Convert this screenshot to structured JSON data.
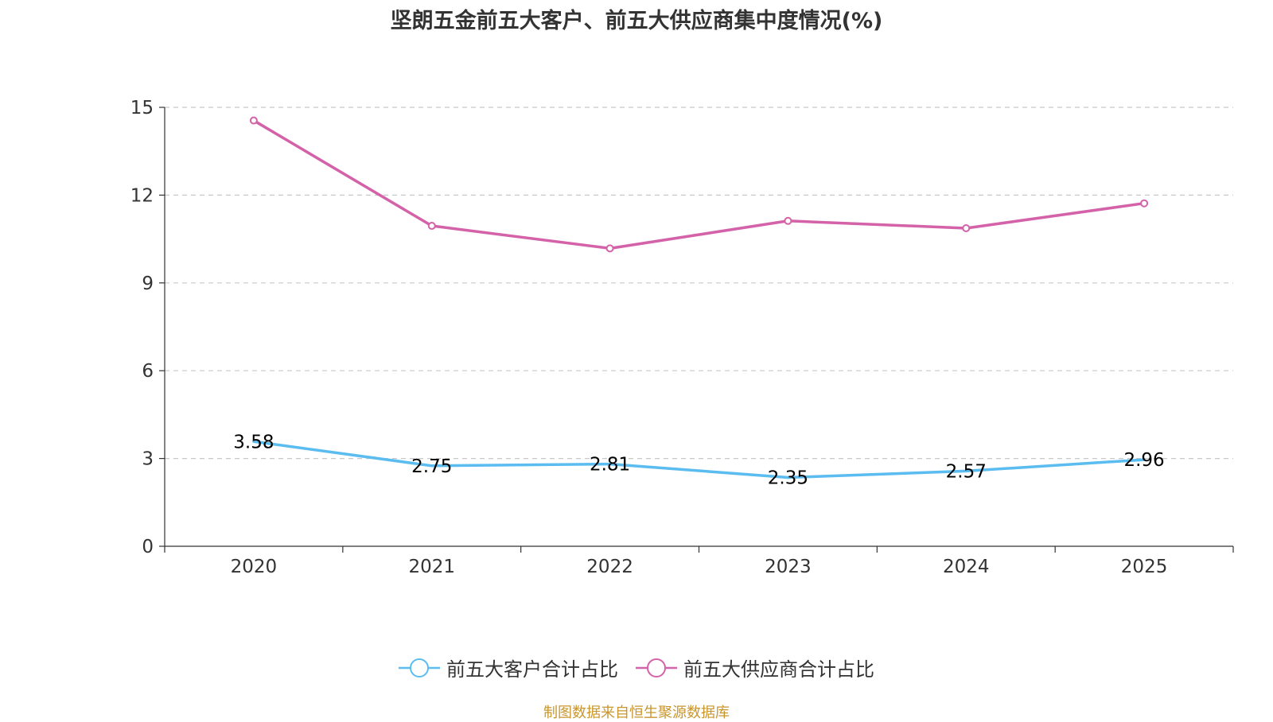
{
  "colors": {
    "customers": "#5bbcf0",
    "suppliers": "#d462a8",
    "grid": "#c8c8c8",
    "axis": "#333333",
    "text": "#333333",
    "source": "#c8962d"
  },
  "source_note": "制图数据来自恒生聚源数据库",
  "chart_data": {
    "type": "line",
    "title": "坚朗五金前五大客户、前五大供应商集中度情况(%)",
    "xlabel": "",
    "ylabel": "",
    "categories": [
      "2020",
      "2021",
      "2022",
      "2023",
      "2024",
      "2025"
    ],
    "ylim": [
      0,
      15
    ],
    "yticks": [
      0,
      3,
      6,
      9,
      12,
      15
    ],
    "grid": true,
    "legend_position": "bottom-center",
    "series": [
      {
        "name": "前五大客户合计占比",
        "values": [
          3.58,
          2.75,
          2.81,
          2.35,
          2.57,
          2.96
        ],
        "labels": [
          "3.58",
          "2.75",
          "2.81",
          "2.35",
          "2.57",
          "2.96"
        ],
        "show_labels": true,
        "show_markers": false,
        "color_key": "customers"
      },
      {
        "name": "前五大供应商合计占比",
        "values": [
          14.55,
          10.95,
          10.18,
          11.12,
          10.87,
          11.72
        ],
        "labels": [],
        "show_labels": false,
        "show_markers": true,
        "color_key": "suppliers"
      }
    ]
  }
}
